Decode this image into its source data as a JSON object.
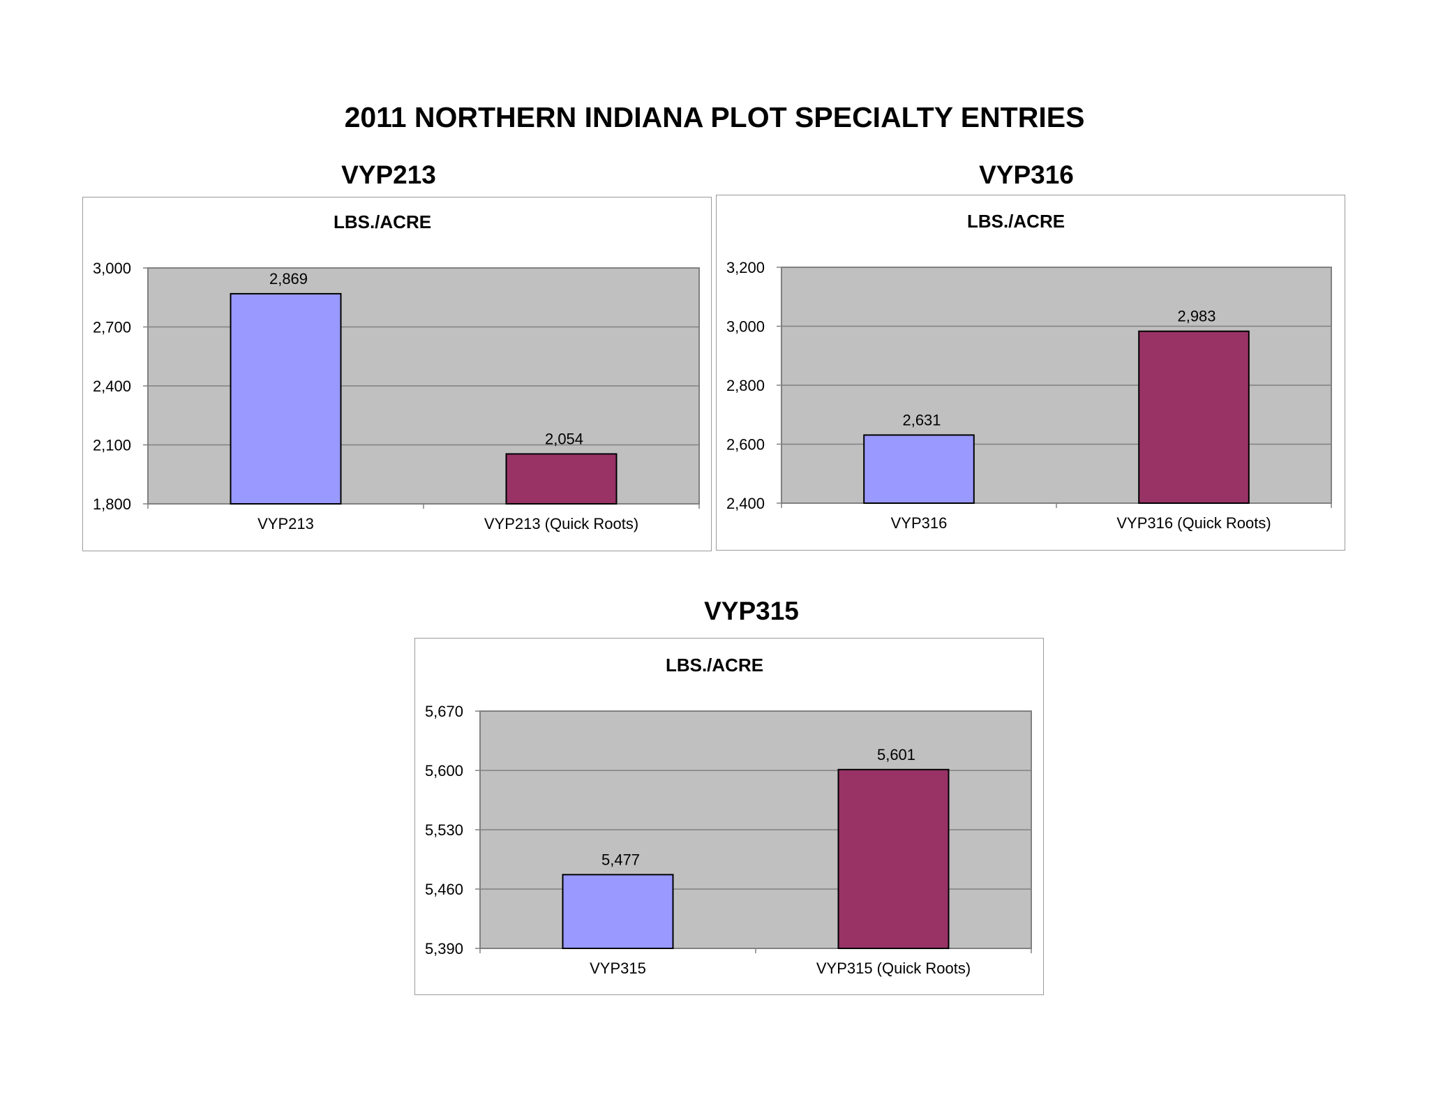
{
  "page": {
    "title": "2011 NORTHERN INDIANA PLOT SPECIALTY ENTRIES"
  },
  "panels": [
    {
      "heading": "VYP213"
    },
    {
      "heading": "VYP316"
    },
    {
      "heading": "VYP315"
    }
  ],
  "colors": {
    "plot_background": "#c0c0c0",
    "gridline": "#808080",
    "series_standard": "#9999ff",
    "series_quick_roots": "#993366",
    "bar_outline": "#000000"
  },
  "chart_data": [
    {
      "type": "bar",
      "title": "LBS./ACRE",
      "categories": [
        "VYP213",
        "VYP213 (Quick Roots)"
      ],
      "values": [
        2869,
        2054
      ],
      "data_labels": [
        "2,869",
        "2,054"
      ],
      "bar_colors": [
        "#9999ff",
        "#993366"
      ],
      "ylim": [
        1800,
        3000
      ],
      "yticks": [
        1800,
        2100,
        2400,
        2700,
        3000
      ],
      "ytick_labels": [
        "1,800",
        "2,100",
        "2,400",
        "2,700",
        "3,000"
      ],
      "grid": true
    },
    {
      "type": "bar",
      "title": "LBS./ACRE",
      "categories": [
        "VYP316",
        "VYP316 (Quick Roots)"
      ],
      "values": [
        2631,
        2983
      ],
      "data_labels": [
        "2,631",
        "2,983"
      ],
      "bar_colors": [
        "#9999ff",
        "#993366"
      ],
      "ylim": [
        2400,
        3200
      ],
      "yticks": [
        2400,
        2600,
        2800,
        3000,
        3200
      ],
      "ytick_labels": [
        "2,400",
        "2,600",
        "2,800",
        "3,000",
        "3,200"
      ],
      "grid": true
    },
    {
      "type": "bar",
      "title": "LBS./ACRE",
      "categories": [
        "VYP315",
        "VYP315 (Quick Roots)"
      ],
      "values": [
        5477,
        5601
      ],
      "data_labels": [
        "5,477",
        "5,601"
      ],
      "bar_colors": [
        "#9999ff",
        "#993366"
      ],
      "ylim": [
        5390,
        5670
      ],
      "yticks": [
        5390,
        5460,
        5530,
        5600,
        5670
      ],
      "ytick_labels": [
        "5,390",
        "5,460",
        "5,530",
        "5,600",
        "5,670"
      ],
      "grid": true
    }
  ]
}
